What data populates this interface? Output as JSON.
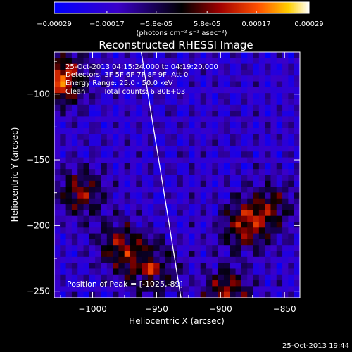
{
  "chart_data": {
    "type": "heatmap",
    "title": "Reconstructed RHESSI Image",
    "xlabel": "Heliocentric X (arcsec)",
    "ylabel": "Heliocentric Y (arcsec)",
    "xlim": [
      -1030,
      -838
    ],
    "ylim": [
      -255,
      -68
    ],
    "x_ticks": [
      -1000,
      -950,
      -900,
      -850
    ],
    "y_ticks": [
      -100,
      -150,
      -200,
      -250
    ],
    "colorbar": {
      "ticks": [
        "-0.00029",
        "-0.00017",
        "-5.8e-05",
        "5.8e-05",
        "0.00017",
        "0.00029"
      ],
      "unit_label": "(photons cm⁻² s⁻¹ asec⁻²)",
      "range": [
        -0.00029,
        0.00029
      ]
    },
    "annotations": {
      "time_range": "25-Oct-2013 04:15:24.000 to 04:19:20.000",
      "detectors": "Detectors: 3F 5F 6F 7F 8F 9F, Att 0",
      "energy": "Energy Range: 25.0 - 50.0 keV",
      "method": "Clean",
      "counts": "Total counts: 6.80E+03",
      "peak_prefix": "Position of Peak = ",
      "peak_value": "[-1025,-89]"
    },
    "limb_line": {
      "x": [
        -962,
        -950,
        -940,
        -931
      ],
      "y": [
        -68,
        -140,
        -200,
        -255
      ]
    },
    "peaks": [
      {
        "x": -1025,
        "y": -89,
        "intensity": 1.0
      },
      {
        "x": -955,
        "y": -232,
        "intensity": 0.85
      },
      {
        "x": -880,
        "y": -200,
        "intensity": 0.75
      },
      {
        "x": -1010,
        "y": -175,
        "intensity": 0.65
      },
      {
        "x": -980,
        "y": -215,
        "intensity": 0.6
      },
      {
        "x": -895,
        "y": -250,
        "intensity": 0.7
      },
      {
        "x": -860,
        "y": -185,
        "intensity": 0.5
      }
    ]
  },
  "footer": {
    "timestamp": "25-Oct-2013 19:44"
  }
}
